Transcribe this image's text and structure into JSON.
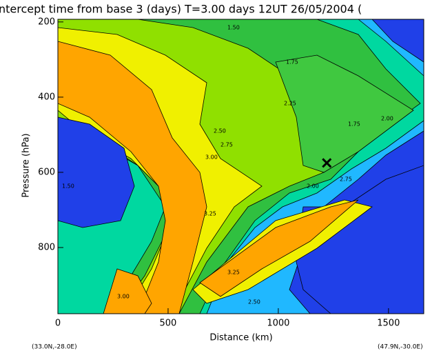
{
  "chart_data": {
    "type": "contour",
    "title": "ntercept time from base 3 (days)   T=3.00 days   12UT 26/05/2004   (",
    "x_label": "Distance  (km)",
    "y_label": "Pressure  (hPa)",
    "xlim": [
      0,
      1660
    ],
    "xticks": [
      0,
      500,
      1000,
      1500
    ],
    "ylim": [
      976,
      193
    ],
    "yticks": [
      200,
      400,
      600,
      800
    ],
    "corner_left": "(33.0N,-28.0E)",
    "corner_right": "(47.9N,-30.0E)",
    "marker": {
      "x": 1220,
      "y": 575
    },
    "contour_labels": [
      "1.50",
      "1.75",
      "2.25",
      "1.75",
      "2.00",
      "2.50",
      "2.75",
      "3.00",
      "3.25",
      "2.75",
      "2.00",
      "3.25",
      "3.00",
      "1.50",
      "2.50"
    ]
  }
}
